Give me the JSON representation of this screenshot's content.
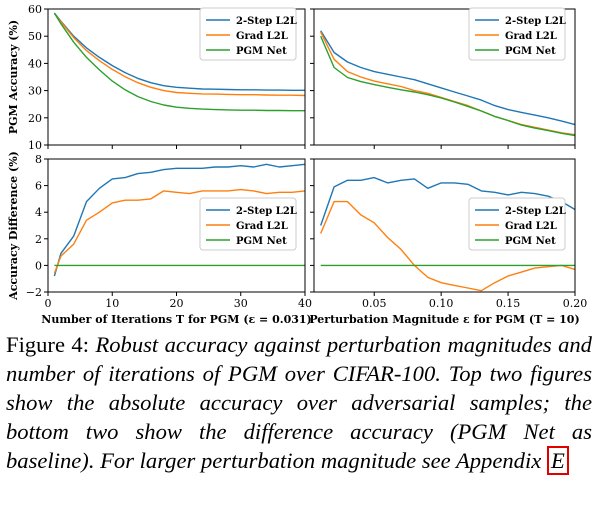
{
  "chart_data": [
    {
      "type": "line",
      "ylabel": "PGM Accuracy (%)",
      "xlim": [
        0,
        40
      ],
      "ylim": [
        10,
        60
      ],
      "yticks": [
        10,
        20,
        30,
        40,
        50,
        60
      ],
      "grid": false,
      "legend": "top-right",
      "series": [
        {
          "name": "2-Step L2L",
          "color": "#1f77b4",
          "x": [
            1,
            2,
            4,
            6,
            8,
            10,
            12,
            14,
            16,
            18,
            20,
            22,
            24,
            26,
            28,
            30,
            32,
            34,
            36,
            38,
            40
          ],
          "y": [
            58.5,
            55.5,
            50,
            45.7,
            42.2,
            39.2,
            36.6,
            34.5,
            32.9,
            31.8,
            31.2,
            30.9,
            30.6,
            30.5,
            30.4,
            30.3,
            30.3,
            30.2,
            30.2,
            30.1,
            30.1
          ]
        },
        {
          "name": "Grad L2L",
          "color": "#ff7f0e",
          "x": [
            1,
            2,
            4,
            6,
            8,
            10,
            12,
            14,
            16,
            18,
            20,
            22,
            24,
            26,
            28,
            30,
            32,
            34,
            36,
            38,
            40
          ],
          "y": [
            58.3,
            55.3,
            49.5,
            44.7,
            41,
            37.8,
            35.1,
            32.9,
            31.2,
            30,
            29.3,
            29,
            28.8,
            28.7,
            28.6,
            28.5,
            28.5,
            28.4,
            28.3,
            28.3,
            28.2
          ]
        },
        {
          "name": "PGM Net",
          "color": "#2ca02c",
          "x": [
            1,
            2,
            4,
            6,
            8,
            10,
            12,
            14,
            16,
            18,
            20,
            22,
            24,
            26,
            28,
            30,
            32,
            34,
            36,
            38,
            40
          ],
          "y": [
            58.5,
            54.6,
            47.8,
            42.2,
            37.6,
            33.5,
            30.3,
            27.8,
            26,
            24.7,
            23.9,
            23.5,
            23.2,
            23,
            22.9,
            22.8,
            22.8,
            22.7,
            22.7,
            22.6,
            22.6
          ]
        }
      ]
    },
    {
      "type": "line",
      "xlim": [
        0.005,
        0.2
      ],
      "ylim": [
        10,
        60
      ],
      "grid": false,
      "legend": "top-right",
      "series": [
        {
          "name": "2-Step L2L",
          "color": "#1f77b4",
          "x": [
            0.01,
            0.02,
            0.03,
            0.04,
            0.05,
            0.06,
            0.07,
            0.08,
            0.09,
            0.1,
            0.11,
            0.12,
            0.13,
            0.14,
            0.15,
            0.16,
            0.17,
            0.18,
            0.19,
            0.2
          ],
          "y": [
            52,
            44,
            40.5,
            38.5,
            37,
            36,
            35,
            34,
            32.5,
            31,
            29.5,
            28,
            26.5,
            24.5,
            23,
            22,
            21,
            20,
            18.8,
            17.5
          ]
        },
        {
          "name": "Grad L2L",
          "color": "#ff7f0e",
          "x": [
            0.01,
            0.02,
            0.03,
            0.04,
            0.05,
            0.06,
            0.07,
            0.08,
            0.09,
            0.1,
            0.11,
            0.12,
            0.13,
            0.14,
            0.15,
            0.16,
            0.17,
            0.18,
            0.19,
            0.2
          ],
          "y": [
            51.5,
            41.5,
            37,
            35,
            33.5,
            32.5,
            31.5,
            30,
            29,
            27.5,
            26,
            24.5,
            22.5,
            20.5,
            19,
            17.5,
            16.5,
            15.5,
            14.5,
            13.8
          ]
        },
        {
          "name": "PGM Net",
          "color": "#2ca02c",
          "x": [
            0.01,
            0.02,
            0.03,
            0.04,
            0.05,
            0.06,
            0.07,
            0.08,
            0.09,
            0.1,
            0.11,
            0.12,
            0.13,
            0.14,
            0.15,
            0.16,
            0.17,
            0.18,
            0.19,
            0.2
          ],
          "y": [
            50,
            38.5,
            34.8,
            33.3,
            32.2,
            31.2,
            30.3,
            29.5,
            28.5,
            27.3,
            25.8,
            24.2,
            22.5,
            20.5,
            19,
            17.3,
            16.2,
            15.3,
            14.3,
            13.5
          ]
        }
      ]
    },
    {
      "type": "line",
      "xlabel": "Number of Iterations T for PGM (ε = 0.031)",
      "ylabel": "Accuracy Difference (%)",
      "xlim": [
        0,
        40
      ],
      "ylim": [
        -2,
        8
      ],
      "xticks": [
        0,
        10,
        20,
        30,
        40
      ],
      "yticks": [
        -2,
        0,
        2,
        4,
        6,
        8
      ],
      "grid": false,
      "legend": "center-right",
      "series": [
        {
          "name": "2-Step L2L",
          "color": "#1f77b4",
          "x": [
            1,
            2,
            4,
            6,
            8,
            10,
            12,
            14,
            16,
            18,
            20,
            22,
            24,
            26,
            28,
            30,
            32,
            34,
            36,
            38,
            40
          ],
          "y": [
            -0.8,
            0.9,
            2.2,
            4.8,
            5.8,
            6.5,
            6.6,
            6.9,
            7,
            7.2,
            7.3,
            7.3,
            7.3,
            7.4,
            7.4,
            7.5,
            7.4,
            7.6,
            7.4,
            7.5,
            7.6
          ]
        },
        {
          "name": "Grad L2L",
          "color": "#ff7f0e",
          "x": [
            1,
            2,
            4,
            6,
            8,
            10,
            12,
            14,
            16,
            18,
            20,
            22,
            24,
            26,
            28,
            30,
            32,
            34,
            36,
            38,
            40
          ],
          "y": [
            -0.6,
            0.7,
            1.6,
            3.4,
            4,
            4.7,
            4.9,
            4.9,
            5,
            5.6,
            5.5,
            5.4,
            5.6,
            5.6,
            5.6,
            5.7,
            5.6,
            5.4,
            5.5,
            5.5,
            5.6
          ]
        },
        {
          "name": "PGM Net",
          "color": "#2ca02c",
          "x": [
            1,
            40
          ],
          "y": [
            0,
            0
          ]
        }
      ]
    },
    {
      "type": "line",
      "xlabel": "Perturbation Magnitude ε for PGM (T = 10)",
      "xlim": [
        0.005,
        0.2
      ],
      "ylim": [
        -2,
        8
      ],
      "xticks": [
        0.05,
        0.1,
        0.15,
        0.2
      ],
      "xticklabels": [
        "0.05",
        "0.10",
        "0.15",
        "0.20"
      ],
      "grid": false,
      "legend": "center-right",
      "series": [
        {
          "name": "2-Step L2L",
          "color": "#1f77b4",
          "x": [
            0.01,
            0.02,
            0.03,
            0.04,
            0.05,
            0.06,
            0.07,
            0.08,
            0.09,
            0.1,
            0.11,
            0.12,
            0.13,
            0.14,
            0.15,
            0.16,
            0.17,
            0.18,
            0.19,
            0.2
          ],
          "y": [
            3,
            5.9,
            6.4,
            6.4,
            6.6,
            6.2,
            6.4,
            6.5,
            5.8,
            6.2,
            6.2,
            6.1,
            5.6,
            5.5,
            5.3,
            5.5,
            5.4,
            5.2,
            4.8,
            4.2
          ]
        },
        {
          "name": "Grad L2L",
          "color": "#ff7f0e",
          "x": [
            0.01,
            0.02,
            0.03,
            0.04,
            0.05,
            0.06,
            0.07,
            0.08,
            0.09,
            0.1,
            0.11,
            0.12,
            0.13,
            0.14,
            0.15,
            0.16,
            0.17,
            0.18,
            0.19,
            0.2
          ],
          "y": [
            2.4,
            4.8,
            4.8,
            3.8,
            3.2,
            2.1,
            1.2,
            0,
            -0.9,
            -1.3,
            -1.5,
            -1.7,
            -1.9,
            -1.3,
            -0.8,
            -0.5,
            -0.2,
            -0.1,
            0,
            -0.3
          ]
        },
        {
          "name": "PGM Net",
          "color": "#2ca02c",
          "x": [
            0.01,
            0.2
          ],
          "y": [
            0,
            0
          ]
        }
      ]
    }
  ],
  "caption": {
    "label": "Figure 4:",
    "text": "Robust accuracy against perturbation magnitudes and number of iterations of PGM over CIFAR-100. Top two figures show the absolute accuracy over adversarial samples; the bottom two show the difference accuracy (PGM Net as baseline). For larger perturbation magnitude see Appendix",
    "link": "E"
  }
}
